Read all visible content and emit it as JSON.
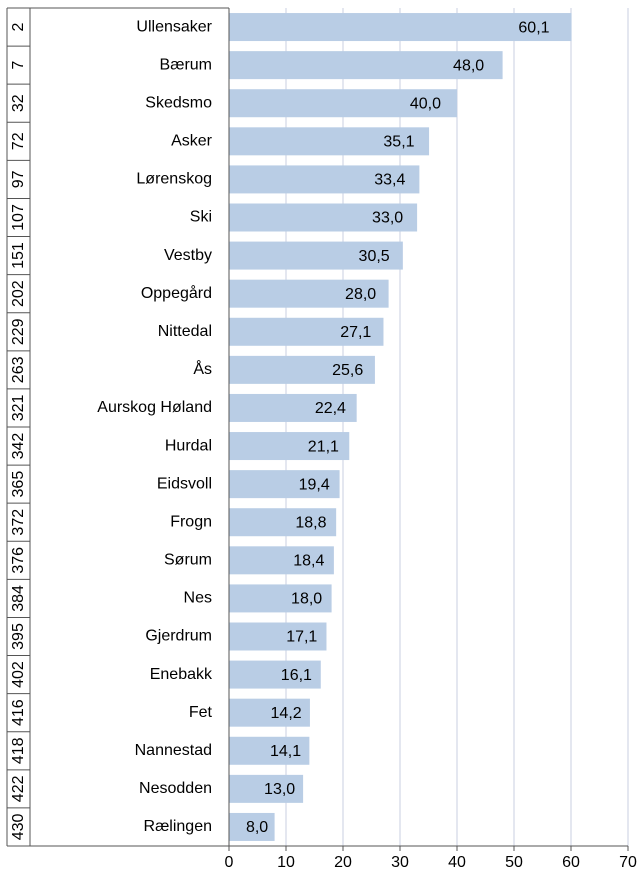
{
  "chart_data": {
    "type": "bar",
    "orientation": "horizontal",
    "ranks": [
      2,
      7,
      32,
      72,
      97,
      107,
      151,
      202,
      229,
      263,
      321,
      342,
      365,
      372,
      376,
      384,
      395,
      402,
      416,
      418,
      422,
      430
    ],
    "categories": [
      "Ullensaker",
      "Bærum",
      "Skedsmo",
      "Asker",
      "Lørenskog",
      "Ski",
      "Vestby",
      "Oppegård",
      "Nittedal",
      "Ås",
      "Aurskog Høland",
      "Hurdal",
      "Eidsvoll",
      "Frogn",
      "Sørum",
      "Nes",
      "Gjerdrum",
      "Enebakk",
      "Fet",
      "Nannestad",
      "Nesodden",
      "Rælingen"
    ],
    "values": [
      60.1,
      48.0,
      40.0,
      35.1,
      33.4,
      33.0,
      30.5,
      28.0,
      27.1,
      25.6,
      22.4,
      21.1,
      19.4,
      18.8,
      18.4,
      18.0,
      17.1,
      16.1,
      14.2,
      14.1,
      13.0,
      8.0
    ],
    "value_labels": [
      "60,1",
      "48,0",
      "40,0",
      "35,1",
      "33,4",
      "33,0",
      "30,5",
      "28,0",
      "27,1",
      "25,6",
      "22,4",
      "21,1",
      "19,4",
      "18,8",
      "18,4",
      "18,0",
      "17,1",
      "16,1",
      "14,2",
      "14,1",
      "13,0",
      "8,0"
    ],
    "color": "#b9cde5",
    "xlim": [
      0,
      70
    ],
    "xticks": [
      0,
      10,
      20,
      30,
      40,
      50,
      60,
      70
    ],
    "grid": true
  }
}
